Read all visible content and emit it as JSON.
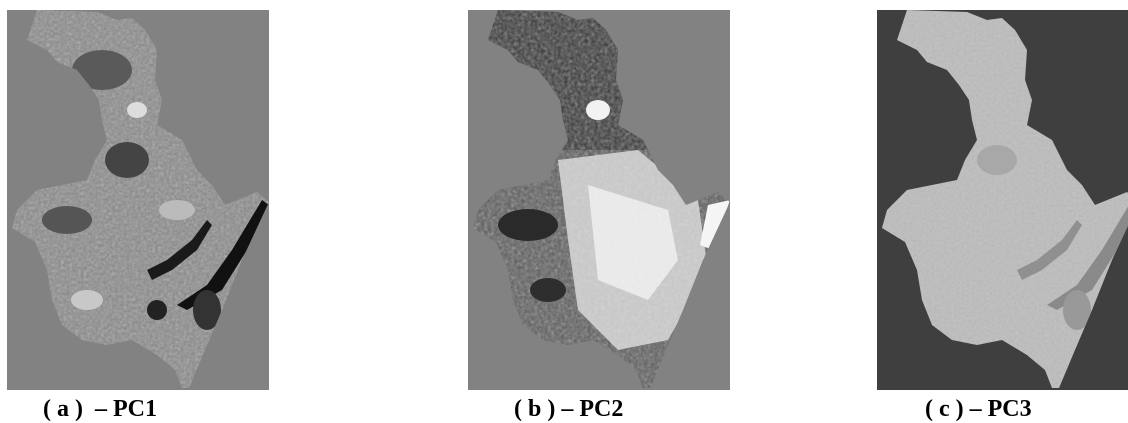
{
  "figure": {
    "panels": [
      {
        "caption": "( a )  – PC1",
        "background": "#828282",
        "land_tone": "#8a8a8a"
      },
      {
        "caption": "( b ) – PC2",
        "background": "#828282",
        "land_tone": "#5a5a5a"
      },
      {
        "caption": "( c ) – PC3",
        "background": "#3f3f3f",
        "land_tone": "#bdbdbd"
      }
    ]
  }
}
